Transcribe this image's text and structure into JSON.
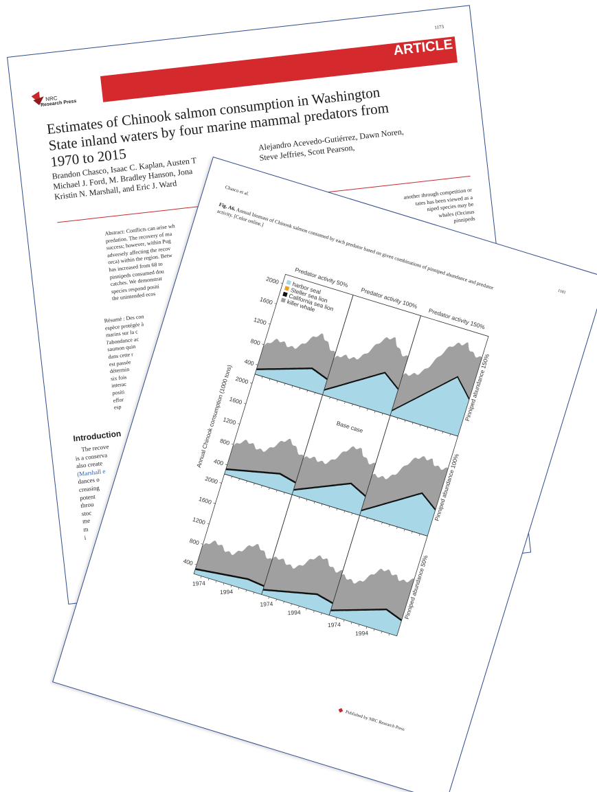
{
  "back_page": {
    "page_number": "1173",
    "banner": "ARTICLE",
    "publisher_logo": [
      "NRC",
      "Research Press"
    ],
    "title": [
      "Estimates of Chinook salmon consumption in Washington",
      "State inland waters by four marine mammal predators from",
      "1970 to 2015"
    ],
    "authors_left": [
      "Brandon Chasco, Isaac C. Kaplan, Austen T",
      "Michael J. Ford, M. Bradley Hanson, Jona",
      "Kristin N. Marshall, and Eric J. Ward"
    ],
    "authors_right": [
      "Alejandro Acevedo-Gutiérrez, Dawn Noren,",
      "Steve Jeffries, Scott Pearson,"
    ],
    "abstract_left": [
      "Abstract: Conflicts can arise wh",
      "predation. The recovery of ma",
      "success; however, within Pug",
      "adversely affecting the recov",
      "orca) within the region. Betw",
      "has increased from 68 to",
      "pinnipeds consumed dou",
      "catches. We demonstrat",
      "species respond positi",
      "the unintended ecos"
    ],
    "abstract_right": [
      "another through competition or",
      "tates has been viewed as a",
      "niped species may be",
      "whales (Orcinus",
      "pinnipeds"
    ],
    "resume_left": [
      "Résumé : Des con",
      "espèce protégée à",
      "marins sur la c",
      "l'abondance ac",
      "saumon quin",
      "dans cette r",
      "est passée",
      "détermin",
      "six fois",
      "interac",
      "positi",
      "effor",
      "esp"
    ],
    "introduction_heading": "Introduction",
    "introduction_left": [
      "The recove",
      "is a conserva",
      "also create",
      "(Marshall e",
      "dances o",
      "creasing",
      "potent",
      "throu",
      "stoc",
      "me",
      "m",
      "i"
    ]
  },
  "front_page": {
    "running_head": "Chasco et al.",
    "page_number": "1181",
    "caption_label": "Fig. A6.",
    "caption": [
      "Annual biomass of Chinook salmon consumed by each predator based on given combinations of pinniped abundance and predator",
      "activity. [Color online.]"
    ],
    "figure": {
      "column_labels": [
        "Predator activity 50%",
        "Predator activity 100%",
        "Predator activity 150%"
      ],
      "row_labels": [
        "Pinniped abundance 150%",
        "Pinniped abundance 100%",
        "Pinniped abundance 50%"
      ],
      "y_axis_label": "Annual Chinook consumption (1000 tons)",
      "y_ticks": [
        "2000",
        "1600",
        "1200",
        "800",
        "400"
      ],
      "x_ticks": [
        "1974",
        "1994"
      ],
      "legend": [
        {
          "name": "harbor seal",
          "color": "#a8d8e8"
        },
        {
          "name": "Steller sea lion",
          "color": "#f0a020"
        },
        {
          "name": "California sea lion",
          "color": "#111111"
        },
        {
          "name": "killer whale",
          "color": "#a0a0a0"
        }
      ],
      "panel_note": "Base case"
    },
    "footer": "Published by NRC Research Press"
  }
}
